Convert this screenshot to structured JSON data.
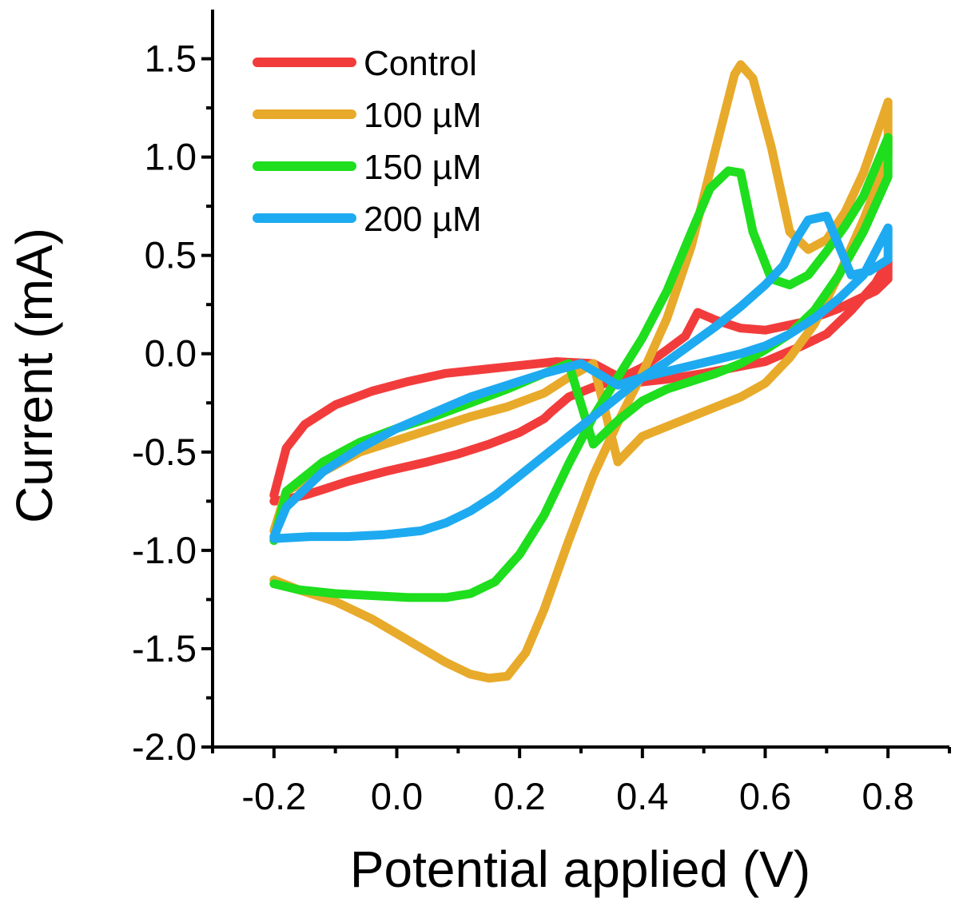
{
  "chart_data": {
    "type": "line",
    "title": "",
    "xlabel": "Potential applied (V)",
    "ylabel": "Current (mA)",
    "xlim": [
      -0.3,
      0.9
    ],
    "ylim": [
      -2.0,
      1.75
    ],
    "x_ticks": [
      -0.2,
      0.0,
      0.2,
      0.4,
      0.6,
      0.8
    ],
    "x_tick_labels": [
      "-0.2",
      "0.0",
      "0.2",
      "0.4",
      "0.6",
      "0.8"
    ],
    "y_ticks": [
      -2.0,
      -1.5,
      -1.0,
      -0.5,
      0.0,
      0.5,
      1.0,
      1.5
    ],
    "y_tick_labels": [
      "-2.0",
      "-1.5",
      "-1.0",
      "-0.5",
      "0.0",
      "0.5",
      "1.0",
      "1.5"
    ],
    "grid": false,
    "legend_position": "top-left",
    "series": [
      {
        "name": "Control",
        "color": "#f23c3c",
        "x": [
          -0.2,
          -0.18,
          -0.15,
          -0.12,
          -0.08,
          -0.02,
          0.05,
          0.1,
          0.15,
          0.2,
          0.24,
          0.25,
          0.28,
          0.32,
          0.36,
          0.4,
          0.44,
          0.47,
          0.49,
          0.52,
          0.56,
          0.6,
          0.66,
          0.72,
          0.78,
          0.8,
          0.8,
          0.78,
          0.74,
          0.7,
          0.66,
          0.6,
          0.55,
          0.5,
          0.44,
          0.38,
          0.32,
          0.26,
          0.2,
          0.14,
          0.08,
          0.02,
          -0.04,
          -0.1,
          -0.15,
          -0.18,
          -0.19,
          -0.2
        ],
        "y": [
          -0.75,
          -0.74,
          -0.72,
          -0.69,
          -0.65,
          -0.6,
          -0.55,
          -0.51,
          -0.46,
          -0.4,
          -0.33,
          -0.3,
          -0.22,
          -0.17,
          -0.13,
          -0.07,
          0.02,
          0.09,
          0.21,
          0.17,
          0.13,
          0.12,
          0.16,
          0.23,
          0.32,
          0.38,
          0.47,
          0.36,
          0.22,
          0.1,
          0.04,
          -0.04,
          -0.07,
          -0.1,
          -0.13,
          -0.15,
          -0.05,
          -0.04,
          -0.06,
          -0.08,
          -0.1,
          -0.14,
          -0.19,
          -0.26,
          -0.36,
          -0.48,
          -0.6,
          -0.72
        ]
      },
      {
        "name": "100 µM",
        "color": "#e8aa2a",
        "x": [
          -0.2,
          -0.16,
          -0.1,
          -0.04,
          0.02,
          0.08,
          0.12,
          0.15,
          0.18,
          0.21,
          0.24,
          0.28,
          0.32,
          0.36,
          0.4,
          0.44,
          0.48,
          0.52,
          0.55,
          0.56,
          0.58,
          0.61,
          0.64,
          0.67,
          0.7,
          0.73,
          0.76,
          0.8,
          0.8,
          0.76,
          0.72,
          0.68,
          0.64,
          0.6,
          0.56,
          0.52,
          0.48,
          0.44,
          0.4,
          0.36,
          0.32,
          0.28,
          0.24,
          0.18,
          0.12,
          0.06,
          0.0,
          -0.06,
          -0.12,
          -0.18,
          -0.2
        ],
        "y": [
          -1.15,
          -1.2,
          -1.26,
          -1.35,
          -1.46,
          -1.57,
          -1.63,
          -1.65,
          -1.64,
          -1.52,
          -1.3,
          -0.95,
          -0.62,
          -0.35,
          -0.1,
          0.18,
          0.55,
          1.05,
          1.42,
          1.47,
          1.4,
          1.05,
          0.62,
          0.53,
          0.58,
          0.72,
          0.92,
          1.28,
          1.0,
          0.68,
          0.4,
          0.15,
          -0.02,
          -0.15,
          -0.22,
          -0.27,
          -0.32,
          -0.37,
          -0.42,
          -0.55,
          -0.05,
          -0.12,
          -0.2,
          -0.27,
          -0.32,
          -0.38,
          -0.44,
          -0.5,
          -0.6,
          -0.7,
          -0.9
        ]
      },
      {
        "name": "150 µM",
        "color": "#1ede1e",
        "x": [
          -0.2,
          -0.16,
          -0.1,
          -0.04,
          0.02,
          0.08,
          0.12,
          0.16,
          0.2,
          0.24,
          0.28,
          0.32,
          0.36,
          0.4,
          0.44,
          0.48,
          0.51,
          0.54,
          0.56,
          0.58,
          0.61,
          0.64,
          0.67,
          0.7,
          0.73,
          0.76,
          0.8,
          0.8,
          0.76,
          0.72,
          0.68,
          0.64,
          0.6,
          0.56,
          0.52,
          0.48,
          0.44,
          0.4,
          0.36,
          0.32,
          0.28,
          0.24,
          0.18,
          0.12,
          0.06,
          0.0,
          -0.06,
          -0.12,
          -0.18,
          -0.2
        ],
        "y": [
          -1.17,
          -1.2,
          -1.22,
          -1.23,
          -1.24,
          -1.24,
          -1.22,
          -1.16,
          -1.02,
          -0.82,
          -0.56,
          -0.32,
          -0.12,
          0.08,
          0.32,
          0.62,
          0.84,
          0.93,
          0.92,
          0.62,
          0.38,
          0.35,
          0.4,
          0.52,
          0.65,
          0.8,
          1.1,
          0.9,
          0.62,
          0.4,
          0.22,
          0.1,
          0.02,
          -0.05,
          -0.1,
          -0.14,
          -0.18,
          -0.24,
          -0.34,
          -0.46,
          -0.05,
          -0.1,
          -0.18,
          -0.25,
          -0.32,
          -0.38,
          -0.45,
          -0.55,
          -0.7,
          -0.95
        ]
      },
      {
        "name": "200 µM",
        "color": "#1eaaf0",
        "x": [
          -0.2,
          -0.14,
          -0.08,
          -0.02,
          0.04,
          0.08,
          0.12,
          0.16,
          0.2,
          0.24,
          0.28,
          0.32,
          0.36,
          0.4,
          0.44,
          0.48,
          0.52,
          0.56,
          0.6,
          0.63,
          0.65,
          0.67,
          0.7,
          0.74,
          0.77,
          0.8,
          0.8,
          0.76,
          0.72,
          0.68,
          0.64,
          0.6,
          0.56,
          0.52,
          0.48,
          0.44,
          0.4,
          0.36,
          0.3,
          0.24,
          0.18,
          0.12,
          0.06,
          0.0,
          -0.06,
          -0.12,
          -0.18,
          -0.2
        ],
        "y": [
          -0.94,
          -0.93,
          -0.93,
          -0.92,
          -0.9,
          -0.86,
          -0.8,
          -0.72,
          -0.62,
          -0.52,
          -0.42,
          -0.32,
          -0.22,
          -0.12,
          -0.04,
          0.05,
          0.14,
          0.24,
          0.35,
          0.45,
          0.58,
          0.68,
          0.7,
          0.4,
          0.42,
          0.48,
          0.64,
          0.4,
          0.28,
          0.18,
          0.1,
          0.04,
          0.0,
          -0.03,
          -0.06,
          -0.09,
          -0.12,
          -0.16,
          -0.05,
          -0.1,
          -0.16,
          -0.22,
          -0.3,
          -0.38,
          -0.48,
          -0.6,
          -0.78,
          -0.93
        ]
      }
    ]
  }
}
